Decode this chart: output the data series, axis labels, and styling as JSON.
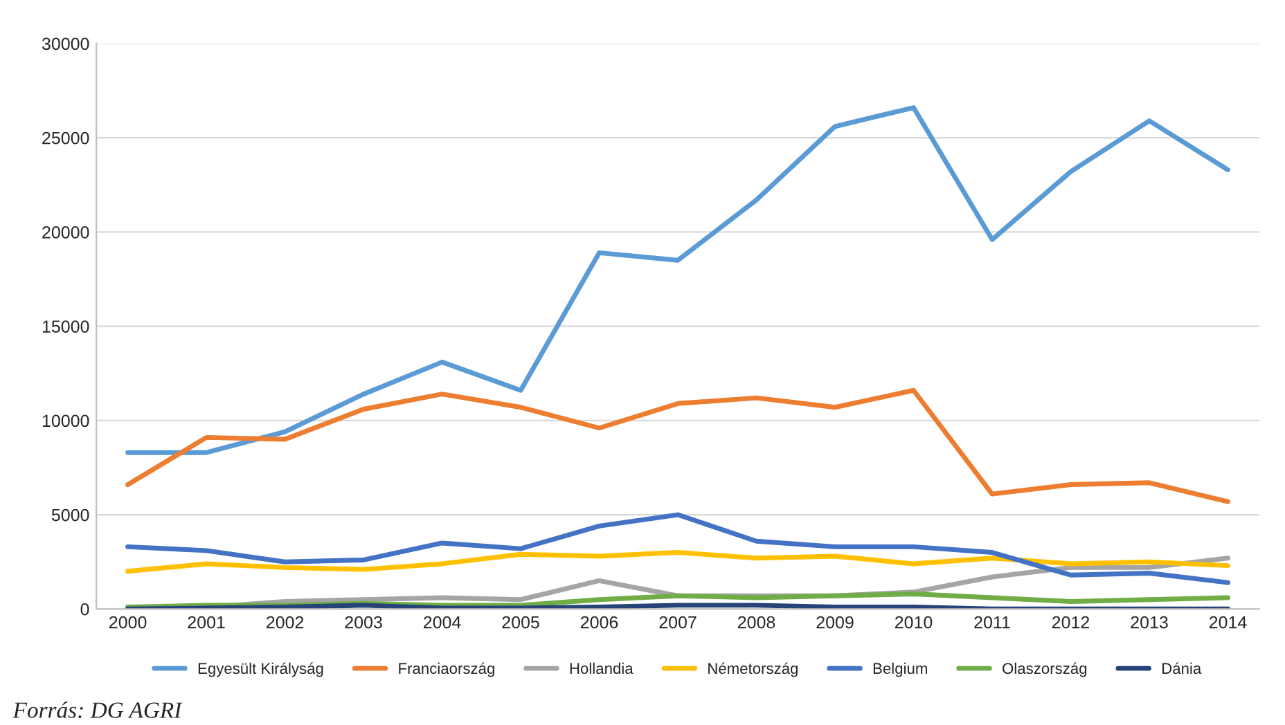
{
  "chart_data": {
    "type": "line",
    "categories": [
      "2000",
      "2001",
      "2002",
      "2003",
      "2004",
      "2005",
      "2006",
      "2007",
      "2008",
      "2009",
      "2010",
      "2011",
      "2012",
      "2013",
      "2014"
    ],
    "series": [
      {
        "name": "Egyesült Királyság",
        "color": "#5b9bd5",
        "values": [
          8300,
          8300,
          9400,
          11400,
          13100,
          11600,
          18900,
          18500,
          21700,
          25600,
          26600,
          19600,
          23200,
          25900,
          23300
        ]
      },
      {
        "name": "Franciaország",
        "color": "#ed7d31",
        "values": [
          6600,
          9100,
          9000,
          10600,
          11400,
          10700,
          9600,
          10900,
          11200,
          10700,
          11600,
          6100,
          6600,
          6700,
          5700
        ]
      },
      {
        "name": "Hollandia",
        "color": "#a5a5a5",
        "values": [
          100,
          100,
          400,
          500,
          600,
          500,
          1500,
          700,
          700,
          700,
          900,
          1700,
          2200,
          2200,
          2700
        ]
      },
      {
        "name": "Németország",
        "color": "#ffc000",
        "values": [
          2000,
          2400,
          2200,
          2100,
          2400,
          2900,
          2800,
          3000,
          2700,
          2800,
          2400,
          2700,
          2400,
          2500,
          2300
        ]
      },
      {
        "name": "Belgium",
        "color": "#4472c4",
        "values": [
          3300,
          3100,
          2500,
          2600,
          3500,
          3200,
          4400,
          5000,
          3600,
          3300,
          3300,
          3000,
          1800,
          1900,
          1400
        ]
      },
      {
        "name": "Olaszország",
        "color": "#70ad47",
        "values": [
          100,
          200,
          200,
          300,
          200,
          200,
          500,
          700,
          600,
          700,
          800,
          600,
          400,
          500,
          600
        ]
      },
      {
        "name": "Dánia",
        "color": "#264478",
        "values": [
          0,
          50,
          100,
          200,
          50,
          50,
          100,
          200,
          200,
          100,
          100,
          0,
          0,
          0,
          0
        ]
      }
    ],
    "ylim": [
      0,
      30000
    ],
    "yticks": [
      0,
      5000,
      10000,
      15000,
      20000,
      25000,
      30000
    ],
    "grid": "y",
    "legend": "bottom",
    "marker": "none",
    "line_style": "solid",
    "annotations": [
      "Forrás: DG AGRI"
    ]
  }
}
